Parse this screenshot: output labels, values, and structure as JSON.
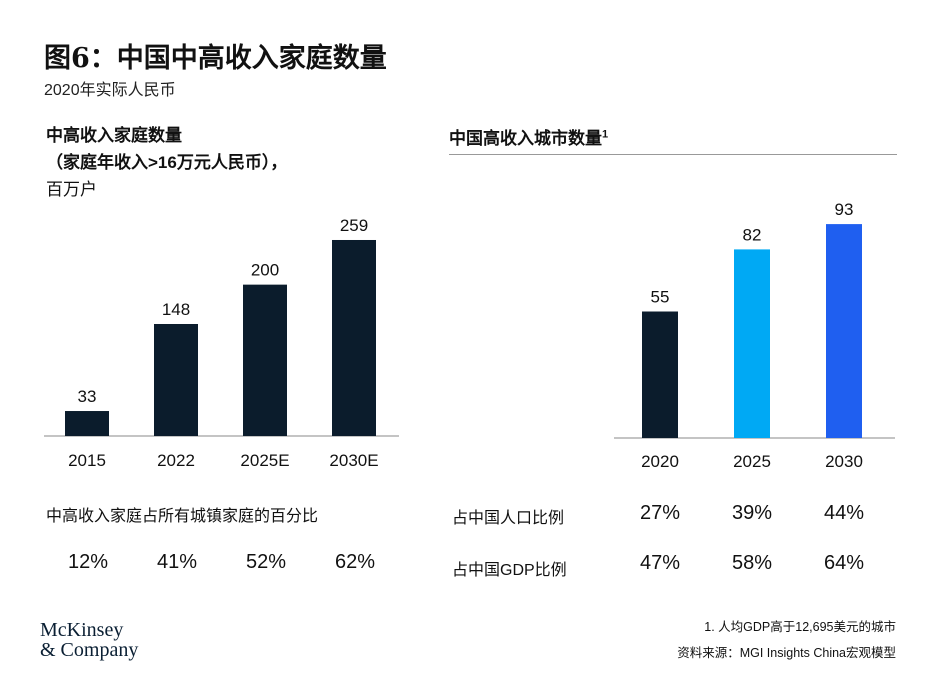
{
  "title": "图6：中国中高收入家庭数量",
  "subtitle": "2020年实际人民币",
  "left": {
    "heading_line1": "中高收入家庭数量",
    "heading_line2": "（家庭年收入>16万元人民币），",
    "heading_line3": "百万户",
    "share_label": "中高收入家庭占所有城镇家庭的百分比",
    "share_values": [
      "12%",
      "41%",
      "52%",
      "62%"
    ]
  },
  "right": {
    "heading": "中国高收入城市数量",
    "heading_sup": "1",
    "rows": [
      {
        "label": "占中国人口比例",
        "values": [
          "27%",
          "39%",
          "44%"
        ]
      },
      {
        "label": "占中国GDP比例",
        "values": [
          "47%",
          "58%",
          "64%"
        ]
      }
    ]
  },
  "chart_data": [
    {
      "type": "bar",
      "categories": [
        "2015",
        "2022",
        "2025E",
        "2030E"
      ],
      "values": [
        33,
        148,
        200,
        259
      ],
      "colors": [
        "#0b1c2c",
        "#0b1c2c",
        "#0b1c2c",
        "#0b1c2c"
      ]
    },
    {
      "type": "bar",
      "categories": [
        "2020",
        "2025",
        "2030"
      ],
      "values": [
        55,
        82,
        93
      ],
      "colors": [
        "#0b1c2c",
        "#00a9f4",
        "#1f5ff0"
      ]
    }
  ],
  "footnote": "1. 人均GDP高于12,695美元的城市",
  "source": "资料来源：MGI Insights China宏观模型",
  "logo": {
    "line1": "McKinsey",
    "line2": "& Company"
  }
}
